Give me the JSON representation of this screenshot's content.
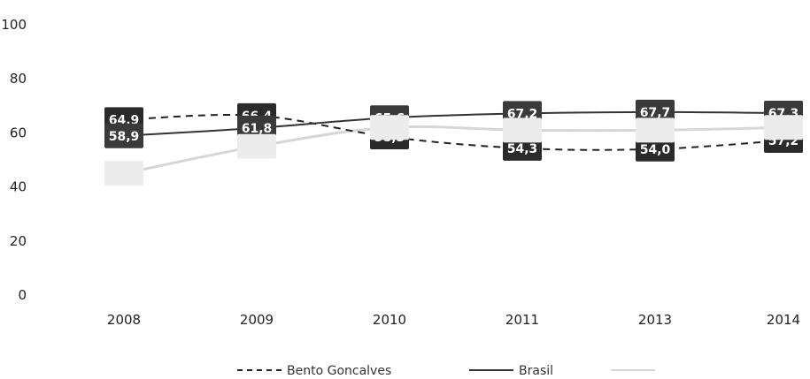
{
  "chart_data": {
    "type": "line",
    "categories": [
      "2008",
      "2009",
      "2010",
      "2011",
      "2013",
      "2014"
    ],
    "ylim": [
      0,
      100
    ],
    "yticks": [
      0,
      20,
      40,
      60,
      80,
      100
    ],
    "grid": false,
    "legend": "bottom",
    "series": [
      {
        "name": "Bento Goncalves",
        "style": "dashed",
        "color": "#222222",
        "label_bg": "#2a2a2a",
        "values": [
          64.9,
          66.4,
          58.5,
          54.3,
          54.0,
          57.2
        ],
        "labels": [
          "64,9",
          "66,4",
          "58,5",
          "54,3",
          "54,0",
          "57,2"
        ]
      },
      {
        "name": "Brasil",
        "style": "solid",
        "color": "#333333",
        "label_bg": "#3a3a3a",
        "values": [
          58.9,
          61.8,
          65.6,
          67.2,
          67.7,
          67.3
        ],
        "labels": [
          "58,9",
          "61,8",
          "65,6",
          "67,2",
          "67,7",
          "67,3"
        ]
      },
      {
        "name": "",
        "style": "solid",
        "color": "#d6d6d6",
        "label_bg": "#ececec",
        "values": [
          45,
          55,
          62,
          61,
          61,
          62
        ],
        "labels": [
          "",
          "",
          "",
          "",
          "",
          ""
        ]
      }
    ]
  }
}
